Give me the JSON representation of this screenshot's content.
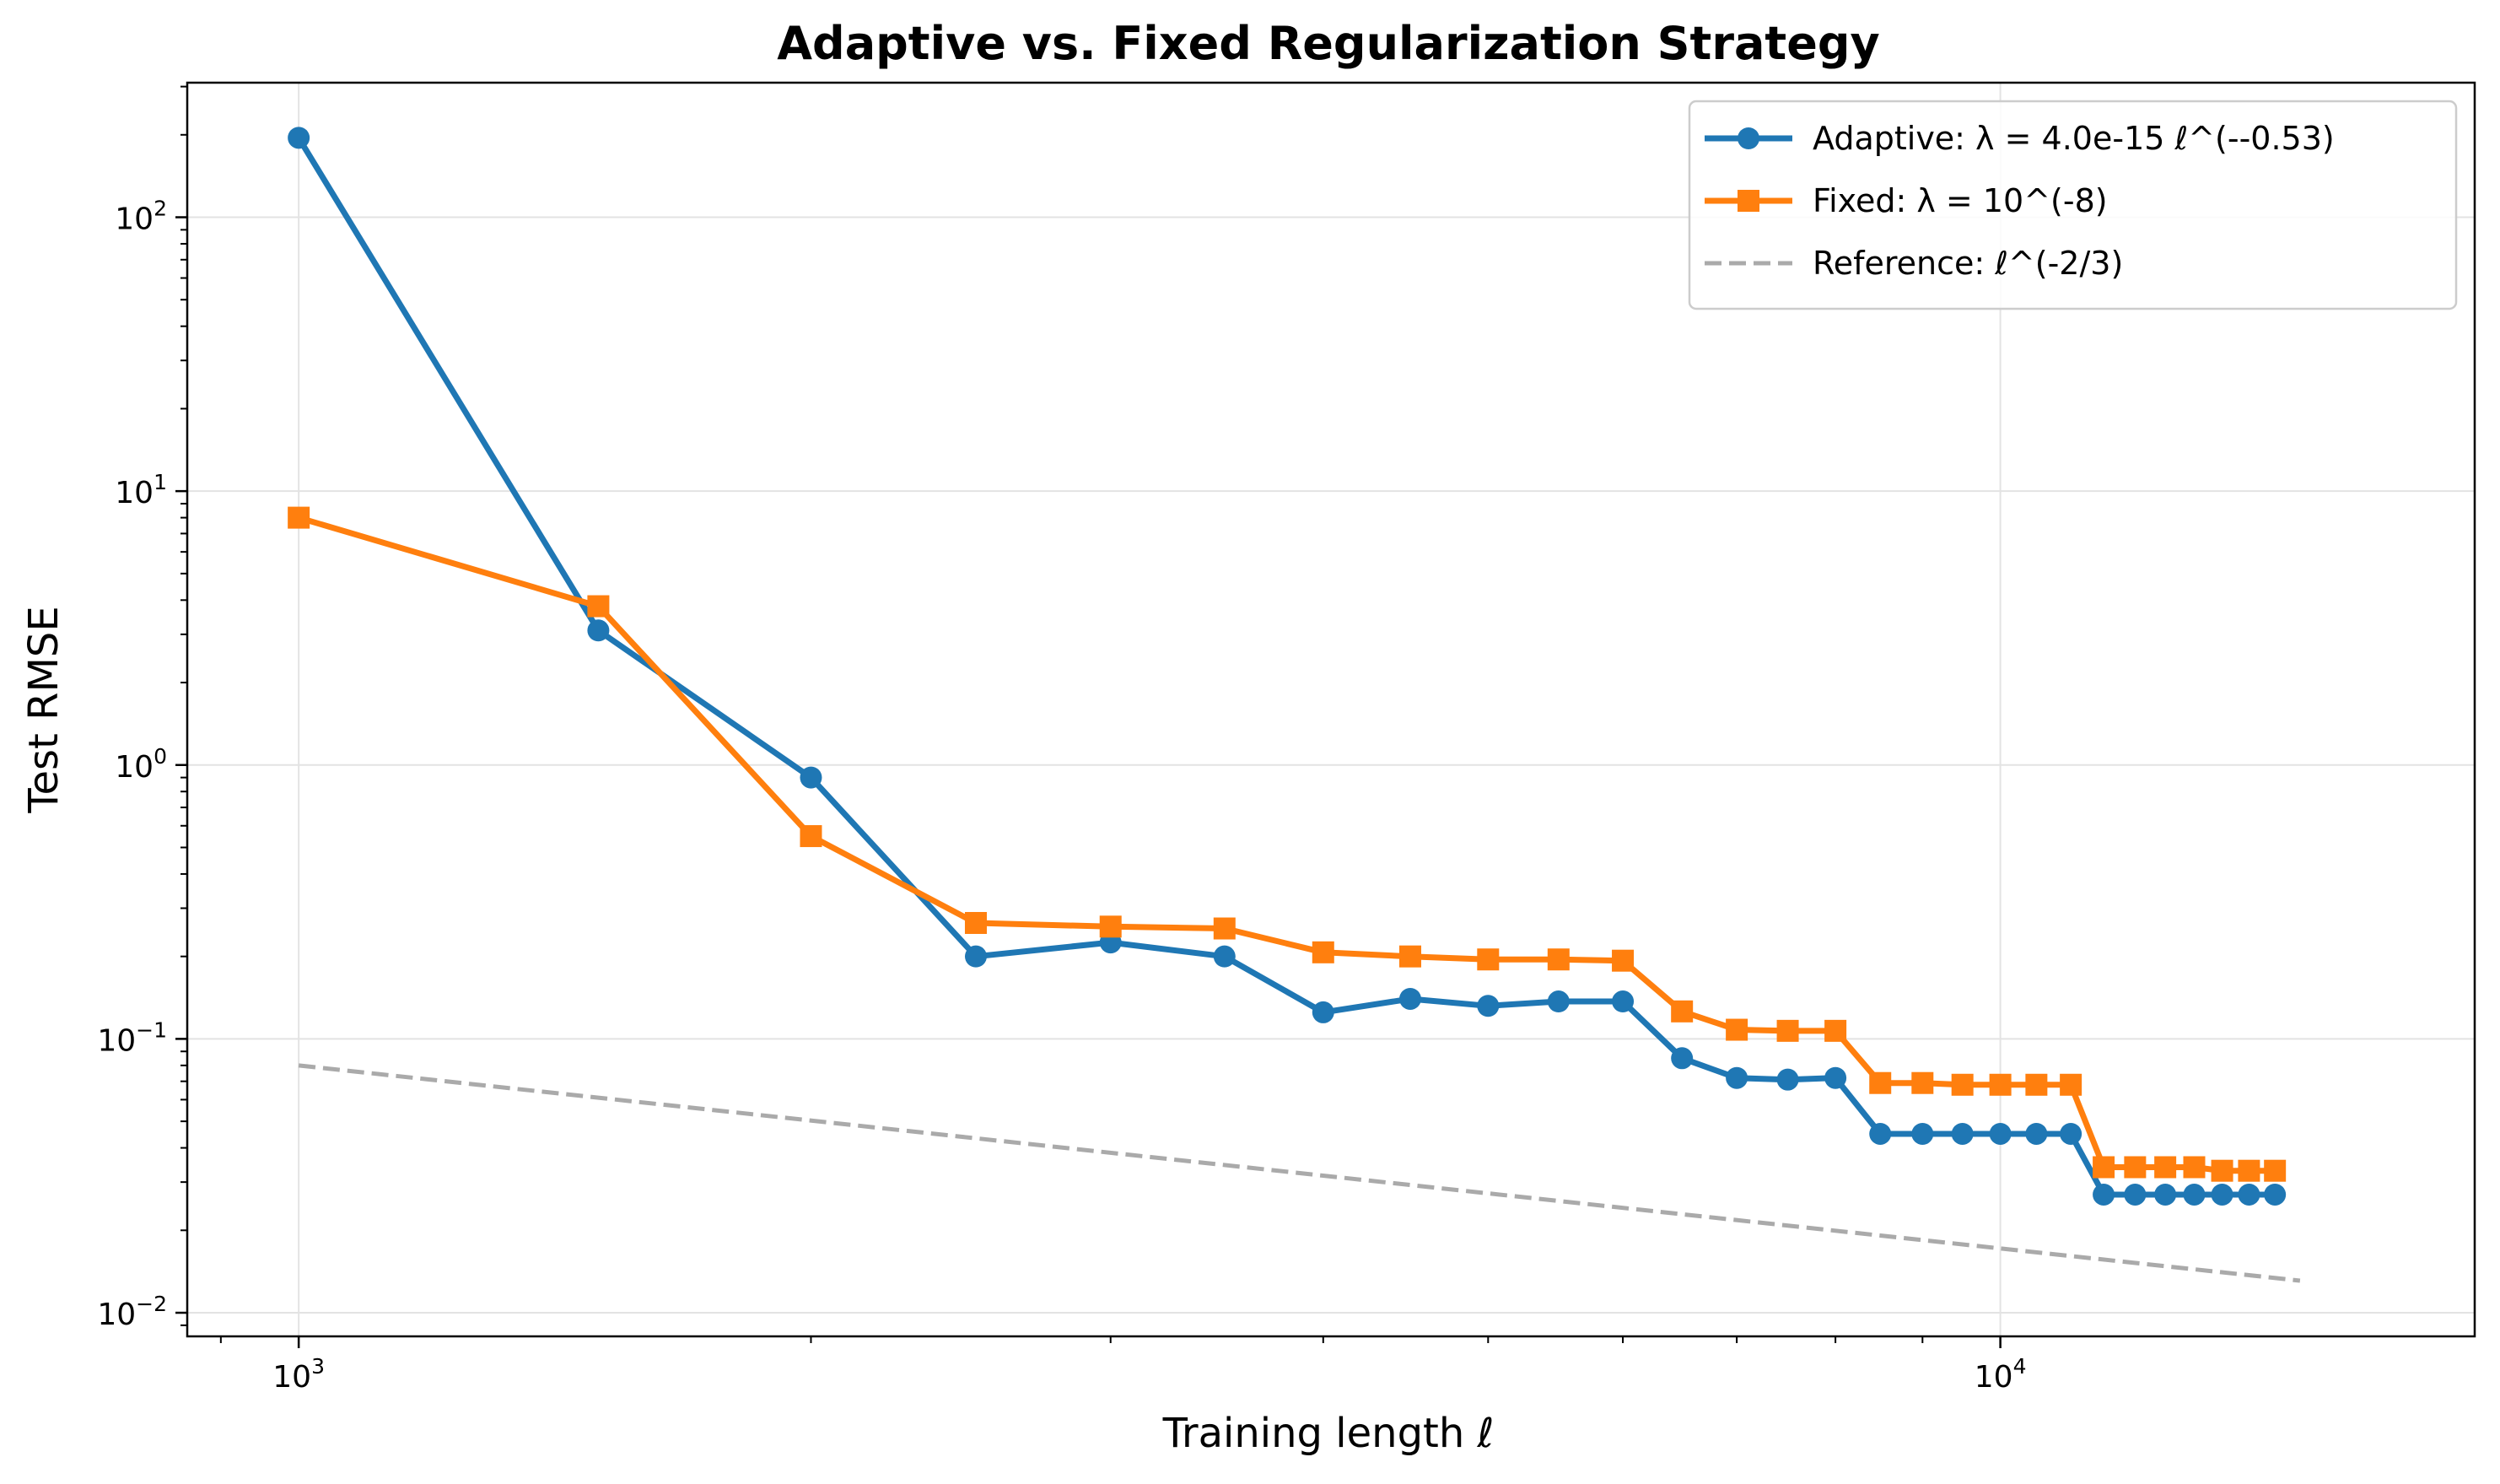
{
  "chart_data": {
    "type": "line",
    "title": "Adaptive vs. Fixed Regularization Strategy",
    "xlabel": "Training length ℓ",
    "ylabel": "Test RMSE",
    "xscale": "log",
    "yscale": "log",
    "xlim": [
      860,
      19000
    ],
    "ylim": [
      0.0082,
      310
    ],
    "grid": true,
    "legend_position": "top-right",
    "x_ticks": [
      {
        "value": 1000,
        "base": "10",
        "exp": "3"
      },
      {
        "value": 10000,
        "base": "10",
        "exp": "4"
      }
    ],
    "y_ticks": [
      {
        "value": 0.01,
        "base": "10",
        "exp": "−2"
      },
      {
        "value": 0.1,
        "base": "10",
        "exp": "−1"
      },
      {
        "value": 1,
        "base": "10",
        "exp": "0"
      },
      {
        "value": 10,
        "base": "10",
        "exp": "1"
      },
      {
        "value": 100,
        "base": "10",
        "exp": "2"
      }
    ],
    "series": [
      {
        "name": "Adaptive: λ = 4.0e-15 ℓ^(--0.53)",
        "color": "#1f77b4",
        "marker": "circle",
        "linestyle": "solid",
        "x": [
          1000,
          1500,
          2000,
          2500,
          3000,
          3500,
          4000,
          4500,
          5000,
          5500,
          6000,
          6500,
          7000,
          7500,
          8000,
          8500,
          9000,
          9500,
          10000,
          10500,
          11000,
          11500,
          12000,
          12500,
          13000,
          13500,
          14000,
          14500
        ],
        "y": [
          195,
          3.1,
          0.9,
          0.2,
          0.225,
          0.2,
          0.125,
          0.14,
          0.132,
          0.137,
          0.137,
          0.085,
          0.072,
          0.071,
          0.072,
          0.045,
          0.045,
          0.045,
          0.045,
          0.045,
          0.045,
          0.027,
          0.027,
          0.027,
          0.027,
          0.027,
          0.027,
          0.027
        ]
      },
      {
        "name": "Fixed: λ = 10^(-8)",
        "color": "#ff7f0e",
        "marker": "square",
        "linestyle": "solid",
        "x": [
          1000,
          1500,
          2000,
          2500,
          3000,
          3500,
          4000,
          4500,
          5000,
          5500,
          6000,
          6500,
          7000,
          7500,
          8000,
          8500,
          9000,
          9500,
          10000,
          10500,
          11000,
          11500,
          12000,
          12500,
          13000,
          13500,
          14000,
          14500
        ],
        "y": [
          8.0,
          3.8,
          0.55,
          0.265,
          0.257,
          0.253,
          0.207,
          0.2,
          0.195,
          0.195,
          0.193,
          0.126,
          0.108,
          0.107,
          0.107,
          0.069,
          0.069,
          0.068,
          0.068,
          0.068,
          0.068,
          0.034,
          0.034,
          0.034,
          0.034,
          0.033,
          0.033,
          0.033
        ]
      },
      {
        "name": "Reference: ℓ^(-2/3)",
        "color": "#aaaaaa",
        "marker": "none",
        "linestyle": "dashed",
        "x": [
          1000,
          15000
        ],
        "y": [
          0.08,
          0.0131
        ]
      }
    ]
  }
}
